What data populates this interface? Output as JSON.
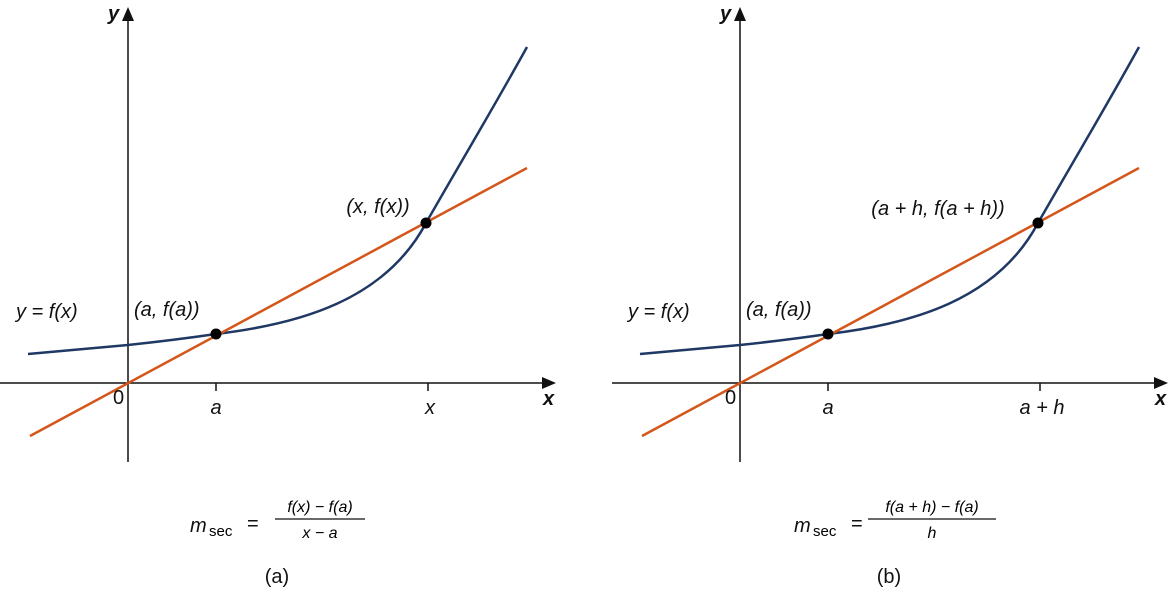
{
  "colors": {
    "curve": "#1f3864",
    "secant": "#d4561a",
    "axis": "#111111",
    "point": "#000000"
  },
  "panels": [
    {
      "y_axis": "y",
      "x_axis": "x",
      "origin": "0",
      "tick1": "a",
      "tick2": "x",
      "point1": "(a, f(a))",
      "point2": "(x, f(x))",
      "function_label": "y = f(x)",
      "formula": {
        "lhs": "m",
        "sub": "sec",
        "eq": "=",
        "numerator": "f(x) − f(a)",
        "denominator": "x − a"
      },
      "caption": "(a)"
    },
    {
      "y_axis": "y",
      "x_axis": "x",
      "origin": "0",
      "tick1": "a",
      "tick2": "a + h",
      "point1": "(a, f(a))",
      "point2": "(a + h, f(a + h))",
      "function_label": "y = f(x)",
      "formula": {
        "lhs": "m",
        "sub": "sec",
        "eq": "=",
        "numerator": "f(a + h) − f(a)",
        "denominator": "h"
      },
      "caption": "(b)"
    }
  ]
}
